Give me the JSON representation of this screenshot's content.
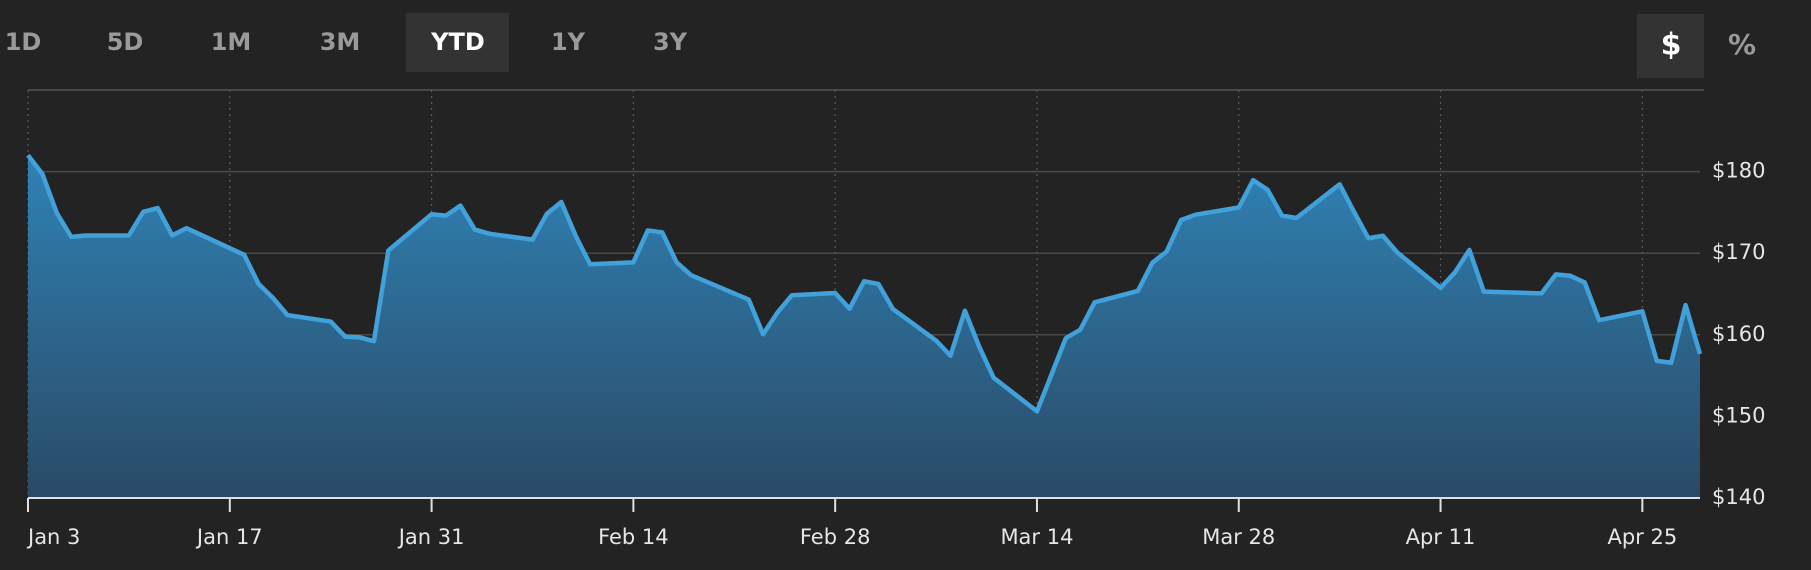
{
  "toolbar": {
    "ranges": [
      "1D",
      "5D",
      "1M",
      "3M",
      "YTD",
      "1Y",
      "3Y"
    ],
    "units": [
      "$",
      "%"
    ]
  },
  "chart_data": {
    "type": "area",
    "x": [
      3,
      4,
      5,
      6,
      7,
      10,
      11,
      12,
      13,
      14,
      18,
      19,
      20,
      21,
      24,
      25,
      26,
      27,
      28,
      31,
      32,
      33,
      34,
      35,
      38,
      39,
      40,
      41,
      42,
      45,
      46,
      47,
      48,
      49,
      53,
      54,
      55,
      56,
      59,
      60,
      61,
      62,
      63,
      66,
      67,
      68,
      69,
      70,
      73,
      74,
      75,
      76,
      77,
      80,
      81,
      82,
      83,
      84,
      87,
      88,
      89,
      90,
      91,
      94,
      95,
      96,
      97,
      98,
      101,
      102,
      103,
      104,
      108,
      109,
      110,
      111,
      112,
      115,
      116,
      117,
      118,
      119
    ],
    "values": [
      182.01,
      179.7,
      174.92,
      172.0,
      172.17,
      172.19,
      175.08,
      175.53,
      172.19,
      173.07,
      169.8,
      166.23,
      164.51,
      162.41,
      161.62,
      159.78,
      159.69,
      159.22,
      170.33,
      174.78,
      174.61,
      175.84,
      172.9,
      172.39,
      171.66,
      174.83,
      176.28,
      172.12,
      168.64,
      168.88,
      172.79,
      172.55,
      168.88,
      167.3,
      164.32,
      160.07,
      162.74,
      164.85,
      165.12,
      163.2,
      166.56,
      166.23,
      163.17,
      159.3,
      157.44,
      162.95,
      158.52,
      154.73,
      150.62,
      155.09,
      159.59,
      160.62,
      163.98,
      165.38,
      168.82,
      170.21,
      174.07,
      174.72,
      175.6,
      178.96,
      177.77,
      174.61,
      174.31,
      178.44,
      175.06,
      171.83,
      172.14,
      170.09,
      165.75,
      167.66,
      170.4,
      165.29,
      165.07,
      167.4,
      167.23,
      166.42,
      161.79,
      162.88,
      156.8,
      156.57,
      163.64,
      157.65
    ],
    "color": "#41a1db",
    "xlim": [
      3,
      119
    ],
    "xticks": [
      {
        "value": 3,
        "label": "Jan 3"
      },
      {
        "value": 17,
        "label": "Jan 17"
      },
      {
        "value": 31,
        "label": "Jan 31"
      },
      {
        "value": 45,
        "label": "Feb 14"
      },
      {
        "value": 59,
        "label": "Feb 28"
      },
      {
        "value": 73,
        "label": "Mar 14"
      },
      {
        "value": 87,
        "label": "Mar 28"
      },
      {
        "value": 101,
        "label": "Apr 11"
      },
      {
        "value": 115,
        "label": "Apr 25"
      }
    ],
    "ylim": [
      140,
      190
    ],
    "yticks": [
      {
        "value": 140,
        "label": "$140"
      },
      {
        "value": 150,
        "label": "$150"
      },
      {
        "value": 160,
        "label": "$160"
      },
      {
        "value": 170,
        "label": "$170"
      },
      {
        "value": 180,
        "label": "$180"
      }
    ],
    "grid": true
  }
}
